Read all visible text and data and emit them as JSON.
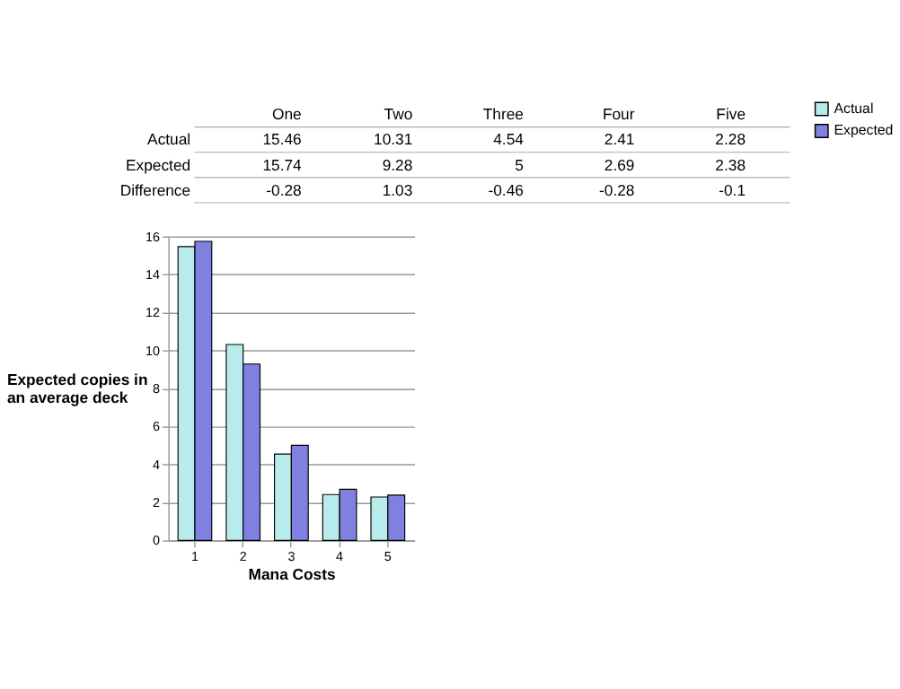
{
  "chart_data": [
    {
      "type": "other",
      "categories": [
        "One",
        "Two",
        "Three",
        "Four",
        "Five"
      ],
      "data_labels": true,
      "series": [
        {
          "name": "Actual",
          "values": [
            15.46,
            10.31,
            4.54,
            2.41,
            2.28
          ]
        },
        {
          "name": "Expected",
          "values": [
            15.74,
            9.28,
            5,
            2.69,
            2.38
          ]
        },
        {
          "name": "Difference",
          "values": [
            -0.28,
            1.03,
            -0.46,
            -0.28,
            -0.1
          ]
        }
      ]
    },
    {
      "type": "bar",
      "categories": [
        "1",
        "2",
        "3",
        "4",
        "5"
      ],
      "xlabel": "Mana Costs",
      "ylabel": "Expected copies in an average deck",
      "ylim": [
        0,
        16
      ],
      "yticks": [
        0,
        2,
        4,
        6,
        8,
        10,
        12,
        14,
        16
      ],
      "grid": "y",
      "legend": "right",
      "series": [
        {
          "name": "Actual",
          "color": "#b8ecec",
          "values": [
            15.46,
            10.31,
            4.54,
            2.41,
            2.28
          ]
        },
        {
          "name": "Expected",
          "color": "#8080e0",
          "values": [
            15.74,
            9.28,
            5,
            2.69,
            2.38
          ]
        }
      ]
    }
  ]
}
